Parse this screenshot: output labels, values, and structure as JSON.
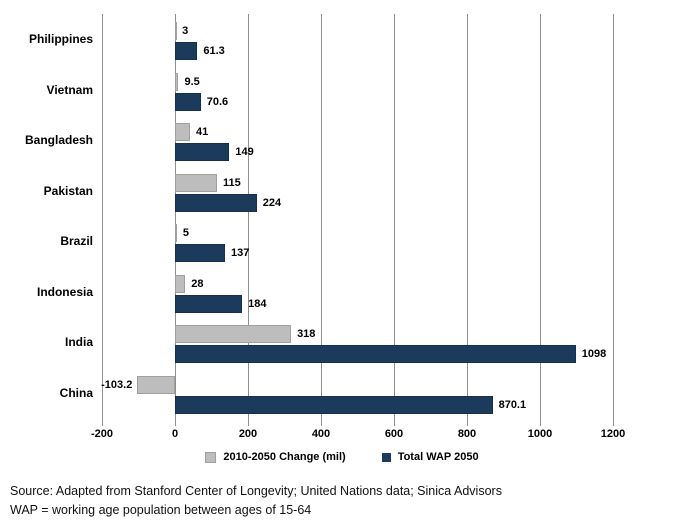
{
  "chart_data": {
    "type": "bar",
    "orientation": "horizontal",
    "title": "",
    "categories": [
      "Philippines",
      "Vietnam",
      "Bangladesh",
      "Pakistan",
      "Brazil",
      "Indonesia",
      "India",
      "China"
    ],
    "series": [
      {
        "name": "2010-2050 Change (mil)",
        "color": "#BDBDBD",
        "border_color": "#A0A0A0",
        "values": [
          3,
          9.5,
          41,
          115,
          5,
          28,
          318,
          -103.2
        ]
      },
      {
        "name": "Total WAP 2050",
        "color": "#1B3A5C",
        "border_color": "#15304D",
        "values": [
          61.3,
          70.6,
          149,
          224,
          137,
          184,
          1098,
          870.1
        ]
      }
    ],
    "x_ticks": [
      -200,
      0,
      200,
      400,
      600,
      800,
      1000,
      1200
    ],
    "xlim": [
      -200,
      1200
    ],
    "grid": true,
    "gridline_color": "#8e8e8e",
    "data_labels": true,
    "legend_position": "bottom"
  },
  "footer": {
    "source_line1": "Source: Adapted from Stanford Center of Longevity; United Nations data; Sinica Advisors",
    "source_line2": "WAP = working age population between ages of 15-64"
  }
}
